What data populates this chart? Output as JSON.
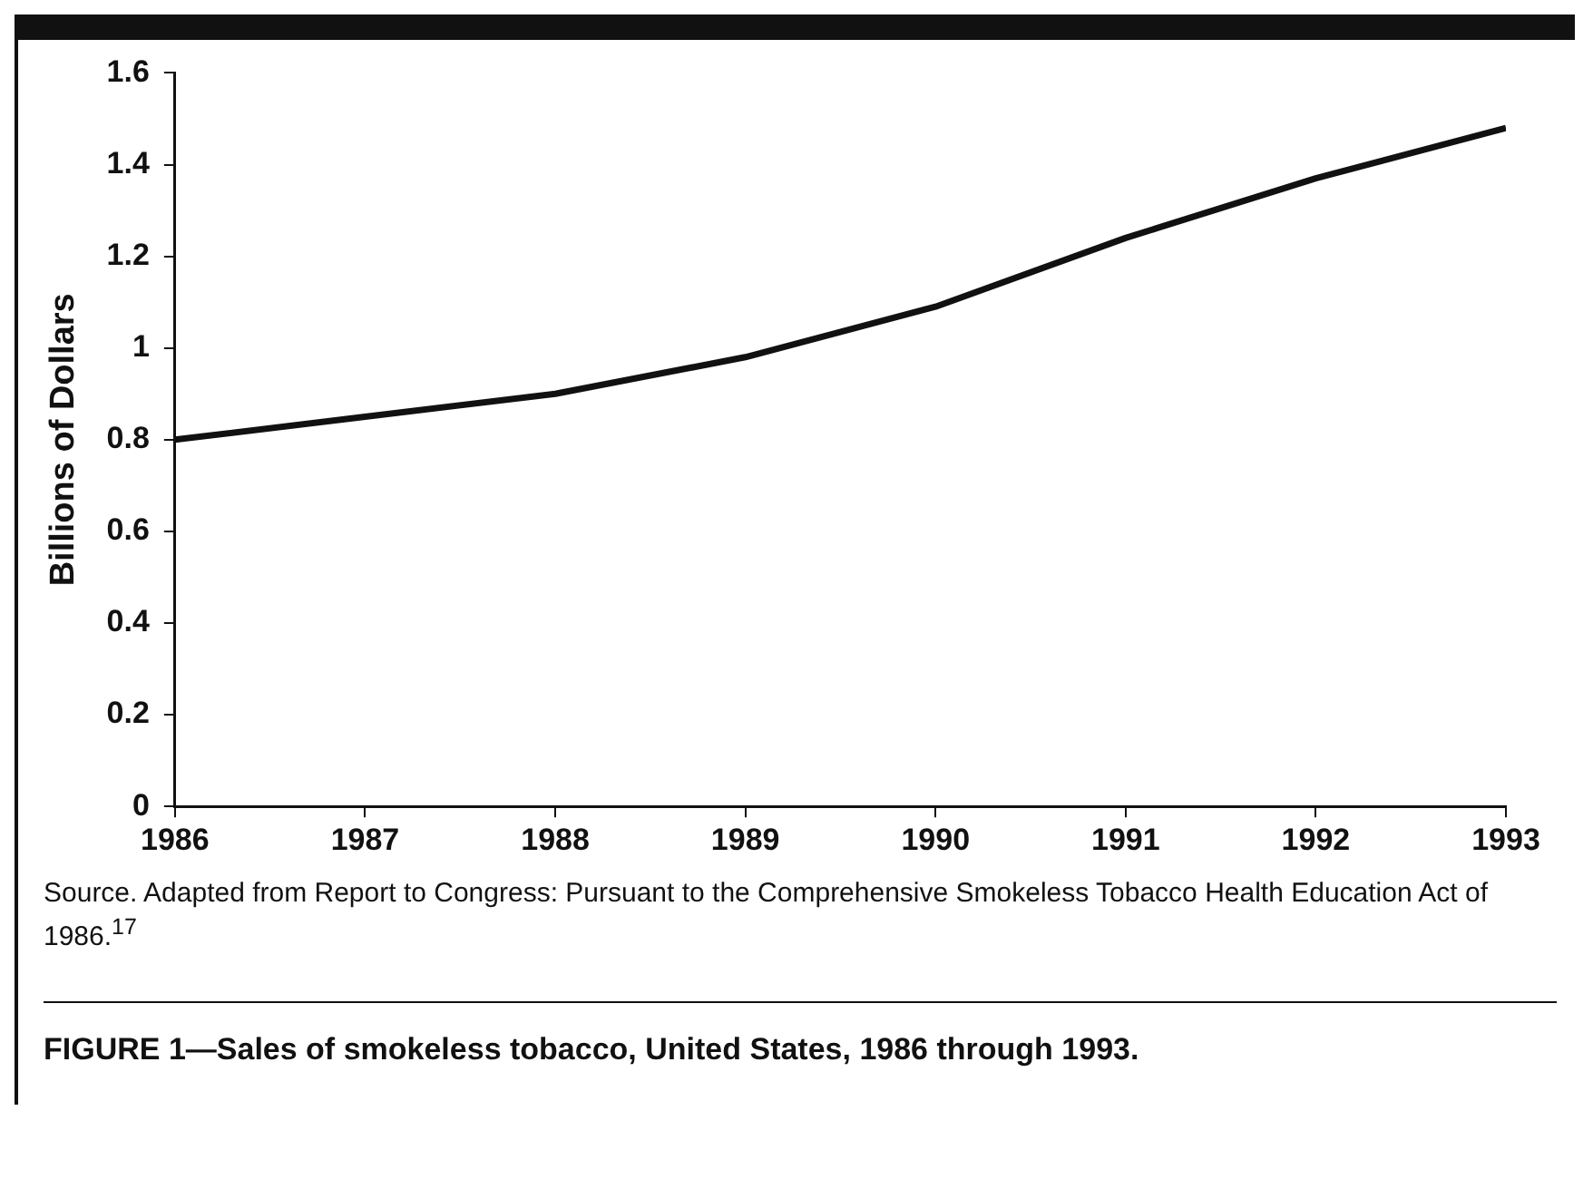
{
  "chart_data": {
    "type": "line",
    "title": "FIGURE 1—Sales of smokeless tobacco, United States, 1986 through 1993.",
    "ylabel": "Billions of Dollars",
    "annotations": [
      "Source. Adapted from Report to Congress: Pursuant to the Comprehensive Smokeless Tobacco Health Education Act of 1986.$^{17}$"
    ],
    "x": [
      1986,
      1987,
      1988,
      1989,
      1990,
      1991,
      1992,
      1993
    ],
    "series": [
      {
        "color": "#111111",
        "values": [
          0.8,
          0.85,
          0.9,
          0.98,
          1.09,
          1.24,
          1.37,
          1.48
        ]
      }
    ],
    "xlim": [
      1986,
      1993
    ],
    "xticks": [
      1986,
      1987,
      1988,
      1989,
      1990,
      1991,
      1992,
      1993
    ],
    "ylim": [
      0,
      1.6
    ],
    "yticks": [
      0,
      0.2,
      0.4,
      0.6,
      0.8,
      1,
      1.2,
      1.4,
      1.6
    ],
    "grid": false,
    "legend": false,
    "marker": "none",
    "line_style": "solid"
  }
}
